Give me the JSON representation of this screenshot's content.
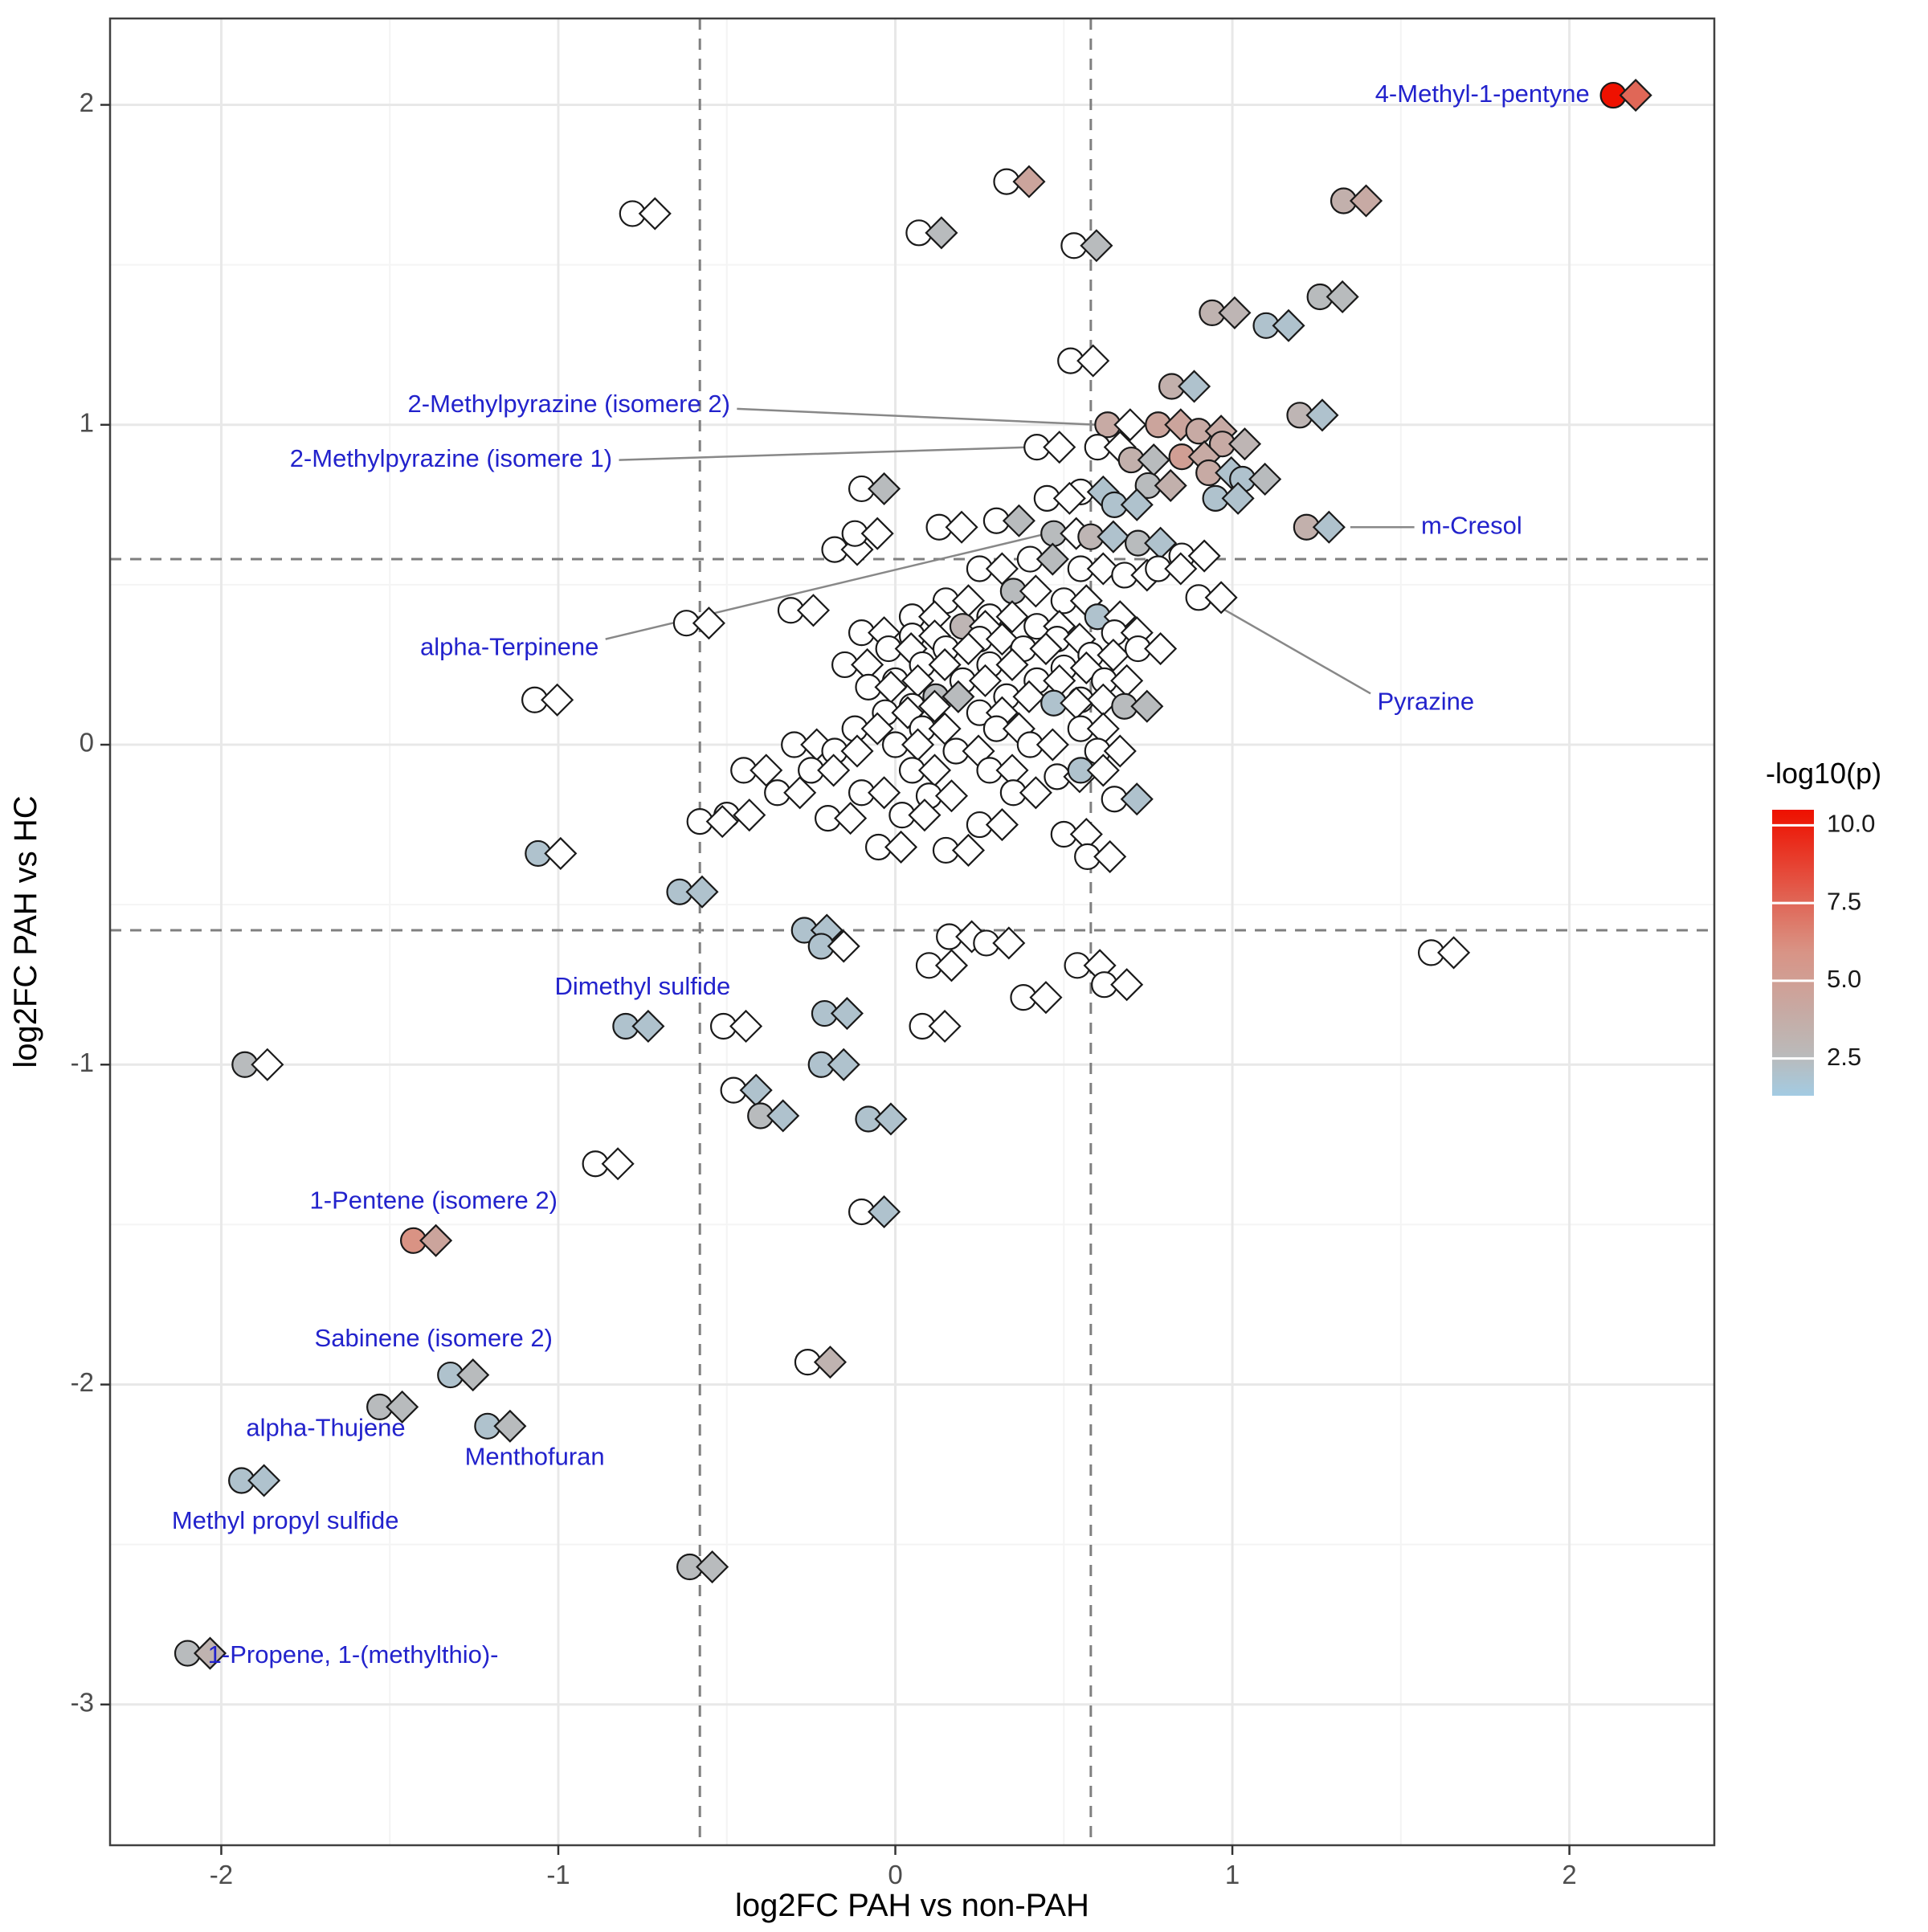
{
  "chart_data": {
    "type": "scatter",
    "title": "",
    "x_axis": {
      "title": "log2FC PAH vs non-PAH",
      "ticks": [
        -2,
        -1,
        0,
        1,
        2
      ],
      "range": [
        -2.33,
        2.43
      ]
    },
    "y_axis": {
      "title": "log2FC PAH vs HC",
      "ticks": [
        -3,
        -2,
        -1,
        0,
        1,
        2
      ],
      "range": [
        -3.44,
        2.27
      ]
    },
    "thresholds": {
      "x": [
        -0.58,
        0.58
      ],
      "y": [
        -0.58,
        0.58
      ]
    },
    "legend": {
      "title": "-log10(p)",
      "ticks": [
        10.0,
        7.5,
        5.0,
        2.5
      ],
      "domain": [
        1.3,
        10.5
      ]
    },
    "colormap": {
      "na_fill": "#ffffff",
      "stops": [
        [
          1.3,
          "#a3cbe3"
        ],
        [
          2.6,
          "#bababa"
        ],
        [
          6.0,
          "#d99384"
        ],
        [
          10.4,
          "#ee1100"
        ]
      ]
    },
    "shapes": [
      "circle",
      "diamond"
    ],
    "points": [
      [
        2.13,
        2.03,
        10.4,
        7.5
      ],
      [
        0.33,
        1.76,
        null,
        4.5
      ],
      [
        0.07,
        1.6,
        null,
        2.5
      ],
      [
        0.53,
        1.56,
        null,
        2.5
      ],
      [
        -0.78,
        1.66,
        null,
        null
      ],
      [
        1.33,
        1.7,
        3.5,
        4
      ],
      [
        1.26,
        1.4,
        2.5,
        2.5
      ],
      [
        0.94,
        1.35,
        3.2,
        3
      ],
      [
        1.1,
        1.31,
        2,
        2
      ],
      [
        0.52,
        1.2,
        null,
        null
      ],
      [
        0.82,
        1.12,
        3.5,
        2
      ],
      [
        1.2,
        1.03,
        3,
        2
      ],
      [
        0.63,
        1,
        4,
        null
      ],
      [
        0.78,
        1,
        4.5,
        4.5
      ],
      [
        0.9,
        0.98,
        4,
        4
      ],
      [
        0.97,
        0.94,
        4,
        3
      ],
      [
        0.85,
        0.9,
        5,
        4
      ],
      [
        0.42,
        0.93,
        null,
        null
      ],
      [
        0.6,
        0.93,
        null,
        null
      ],
      [
        0.7,
        0.89,
        3.5,
        2.5
      ],
      [
        0.93,
        0.85,
        4,
        2
      ],
      [
        1.03,
        0.83,
        2,
        2.5
      ],
      [
        0.75,
        0.81,
        2.5,
        3.5
      ],
      [
        0.55,
        0.79,
        null,
        2
      ],
      [
        -0.1,
        0.8,
        null,
        2.5
      ],
      [
        0.45,
        0.77,
        null,
        null
      ],
      [
        0.65,
        0.75,
        2,
        2
      ],
      [
        0.95,
        0.77,
        2,
        2
      ],
      [
        1.22,
        0.68,
        3.5,
        2
      ],
      [
        0.3,
        0.7,
        null,
        2.5
      ],
      [
        0.13,
        0.68,
        null,
        null
      ],
      [
        0.47,
        0.66,
        2.5,
        null
      ],
      [
        0.58,
        0.65,
        3,
        2
      ],
      [
        0.72,
        0.63,
        2.5,
        2
      ],
      [
        -0.18,
        0.61,
        null,
        null
      ],
      [
        -0.12,
        0.66,
        null,
        null
      ],
      [
        0.85,
        0.59,
        null,
        null
      ],
      [
        0.4,
        0.58,
        null,
        2.5
      ],
      [
        0.55,
        0.55,
        null,
        null
      ],
      [
        0.25,
        0.55,
        null,
        null
      ],
      [
        0.68,
        0.53,
        null,
        null
      ],
      [
        0.78,
        0.55,
        null,
        null
      ],
      [
        0.9,
        0.46,
        null,
        null
      ],
      [
        0.35,
        0.48,
        2.5,
        null
      ],
      [
        0.15,
        0.45,
        null,
        null
      ],
      [
        0.5,
        0.45,
        null,
        null
      ],
      [
        -0.31,
        0.42,
        null,
        null
      ],
      [
        -0.62,
        0.38,
        null,
        null
      ],
      [
        0.05,
        0.4,
        null,
        null
      ],
      [
        0.28,
        0.4,
        null,
        null
      ],
      [
        0.6,
        0.4,
        2,
        null
      ],
      [
        0.42,
        0.37,
        null,
        null
      ],
      [
        0.2,
        0.37,
        3,
        null
      ],
      [
        -0.1,
        0.35,
        null,
        null
      ],
      [
        0.05,
        0.34,
        null,
        null
      ],
      [
        0.25,
        0.33,
        null,
        null
      ],
      [
        0.48,
        0.33,
        null,
        null
      ],
      [
        0.65,
        0.35,
        null,
        null
      ],
      [
        -0.02,
        0.3,
        null,
        null
      ],
      [
        0.15,
        0.3,
        null,
        null
      ],
      [
        0.38,
        0.3,
        null,
        null
      ],
      [
        0.58,
        0.28,
        null,
        null
      ],
      [
        0.72,
        0.3,
        null,
        null
      ],
      [
        0.08,
        0.25,
        null,
        null
      ],
      [
        0.28,
        0.25,
        null,
        null
      ],
      [
        0.5,
        0.24,
        null,
        null
      ],
      [
        -0.15,
        0.25,
        null,
        null
      ],
      [
        0,
        0.2,
        null,
        null
      ],
      [
        0.2,
        0.2,
        null,
        null
      ],
      [
        0.42,
        0.2,
        null,
        null
      ],
      [
        0.62,
        0.2,
        null,
        null
      ],
      [
        -0.08,
        0.18,
        null,
        null
      ],
      [
        0.12,
        0.15,
        2.5,
        2.5
      ],
      [
        0.33,
        0.15,
        null,
        null
      ],
      [
        0.55,
        0.14,
        null,
        null
      ],
      [
        0.05,
        0.12,
        null,
        null
      ],
      [
        0.47,
        0.13,
        2,
        null
      ],
      [
        -1.07,
        0.14,
        null,
        null
      ],
      [
        -0.03,
        0.1,
        null,
        null
      ],
      [
        0.25,
        0.1,
        null,
        null
      ],
      [
        0.68,
        0.12,
        2.5,
        2.5
      ],
      [
        0.08,
        0.05,
        null,
        null
      ],
      [
        0.3,
        0.05,
        null,
        null
      ],
      [
        0.55,
        0.05,
        null,
        null
      ],
      [
        -0.12,
        0.05,
        null,
        null
      ],
      [
        -0.3,
        0,
        null,
        null
      ],
      [
        -0.18,
        -0.02,
        null,
        null
      ],
      [
        0,
        0,
        null,
        null
      ],
      [
        0.18,
        -0.02,
        null,
        null
      ],
      [
        0.4,
        0,
        null,
        null
      ],
      [
        0.6,
        -0.02,
        null,
        null
      ],
      [
        -0.45,
        -0.08,
        null,
        null
      ],
      [
        -0.25,
        -0.08,
        null,
        null
      ],
      [
        0.05,
        -0.08,
        null,
        null
      ],
      [
        0.28,
        -0.08,
        null,
        null
      ],
      [
        0.48,
        -0.1,
        null,
        null
      ],
      [
        0.55,
        -0.08,
        2,
        null
      ],
      [
        -0.35,
        -0.15,
        null,
        null
      ],
      [
        -0.1,
        -0.15,
        null,
        null
      ],
      [
        0.1,
        -0.16,
        null,
        null
      ],
      [
        0.35,
        -0.15,
        null,
        null
      ],
      [
        0.65,
        -0.17,
        null,
        2
      ],
      [
        -0.5,
        -0.22,
        null,
        null
      ],
      [
        -0.58,
        -0.24,
        null,
        null
      ],
      [
        -0.2,
        -0.23,
        null,
        null
      ],
      [
        0.02,
        -0.22,
        null,
        null
      ],
      [
        0.25,
        -0.25,
        null,
        null
      ],
      [
        0.5,
        -0.28,
        null,
        null
      ],
      [
        -0.05,
        -0.32,
        null,
        null
      ],
      [
        0.15,
        -0.33,
        null,
        null
      ],
      [
        0.57,
        -0.35,
        null,
        null
      ],
      [
        -1.06,
        -0.34,
        2,
        null
      ],
      [
        -0.64,
        -0.46,
        2,
        2
      ],
      [
        -0.27,
        -0.58,
        2,
        2
      ],
      [
        -0.22,
        -0.63,
        2,
        null
      ],
      [
        0.16,
        -0.6,
        null,
        null
      ],
      [
        0.27,
        -0.62,
        null,
        null
      ],
      [
        1.59,
        -0.65,
        null,
        null
      ],
      [
        0.1,
        -0.69,
        null,
        null
      ],
      [
        0.54,
        -0.69,
        null,
        null
      ],
      [
        0.38,
        -0.79,
        null,
        null
      ],
      [
        -0.51,
        -0.88,
        null,
        null
      ],
      [
        -0.8,
        -0.88,
        2,
        2
      ],
      [
        -0.21,
        -0.84,
        2,
        2
      ],
      [
        0.08,
        -0.88,
        null,
        null
      ],
      [
        0.62,
        -0.75,
        null,
        null
      ],
      [
        -0.22,
        -1,
        2,
        2
      ],
      [
        -0.48,
        -1.08,
        null,
        2
      ],
      [
        -0.4,
        -1.16,
        2.5,
        2
      ],
      [
        -0.08,
        -1.17,
        2,
        2
      ],
      [
        -0.89,
        -1.31,
        null,
        null
      ],
      [
        -0.1,
        -1.46,
        null,
        2
      ],
      [
        -1.43,
        -1.55,
        6,
        4.5
      ],
      [
        -0.26,
        -1.93,
        null,
        3.2
      ],
      [
        -1.32,
        -1.97,
        2,
        2.5
      ],
      [
        -1.53,
        -2.07,
        2.5,
        2.5
      ],
      [
        -1.21,
        -2.13,
        2,
        2.5
      ],
      [
        -1.94,
        -2.3,
        2,
        2
      ],
      [
        -0.61,
        -2.57,
        2.5,
        2.5
      ],
      [
        -2.1,
        -2.84,
        2.5,
        3.2
      ],
      [
        -1.93,
        -1.0,
        2.5,
        null
      ]
    ],
    "labels": [
      {
        "text": "4-Methyl-1-pentyne",
        "x": 2.06,
        "y": 2.03,
        "anchor": "end",
        "line": null
      },
      {
        "text": "2-Methylpyrazine (isomere 2)",
        "x": -0.49,
        "y": 1.06,
        "anchor": "end",
        "line": [
          -0.47,
          1.05,
          0.6,
          1.0
        ]
      },
      {
        "text": "2-Methylpyrazine (isomere 1)",
        "x": -0.84,
        "y": 0.89,
        "anchor": "end",
        "line": [
          -0.82,
          0.89,
          0.4,
          0.93
        ]
      },
      {
        "text": "m-Cresol",
        "x": 1.56,
        "y": 0.68,
        "anchor": "start",
        "line": [
          1.54,
          0.68,
          1.35,
          0.68
        ]
      },
      {
        "text": "alpha-Terpinene",
        "x": -0.88,
        "y": 0.3,
        "anchor": "end",
        "line": [
          -0.86,
          0.33,
          0.45,
          0.66
        ]
      },
      {
        "text": "Pyrazine",
        "x": 1.43,
        "y": 0.13,
        "anchor": "start",
        "line": [
          1.41,
          0.16,
          0.93,
          0.45
        ]
      },
      {
        "text": "Dimethyl sulfide",
        "x": -0.75,
        "y": -0.76,
        "anchor": "middle",
        "line": null
      },
      {
        "text": "1-Pentene (isomere 2)",
        "x": -1.37,
        "y": -1.43,
        "anchor": "middle",
        "line": null
      },
      {
        "text": "Sabinene (isomere 2)",
        "x": -1.37,
        "y": -1.86,
        "anchor": "middle",
        "line": null
      },
      {
        "text": "alpha-Thujene",
        "x": -1.69,
        "y": -2.14,
        "anchor": "middle",
        "line": null
      },
      {
        "text": "Menthofuran",
        "x": -1.07,
        "y": -2.23,
        "anchor": "middle",
        "line": null
      },
      {
        "text": "Methyl propyl sulfide",
        "x": -1.81,
        "y": -2.43,
        "anchor": "middle",
        "line": null
      },
      {
        "text": "1-Propene, 1-(methylthio)-",
        "x": -2.04,
        "y": -2.85,
        "anchor": "start",
        "line": null
      }
    ],
    "style": {
      "label_color": "#2222cc",
      "leader_color": "#888888",
      "threshold_color": "#7f7f7f",
      "grid_major": "#e8e8e8",
      "grid_minor": "#f4f4f4",
      "panel_border": "#404040",
      "tick_text": "#4d4d4d",
      "axis_text": "#000000",
      "point_stroke": "#1a1a1a"
    }
  }
}
